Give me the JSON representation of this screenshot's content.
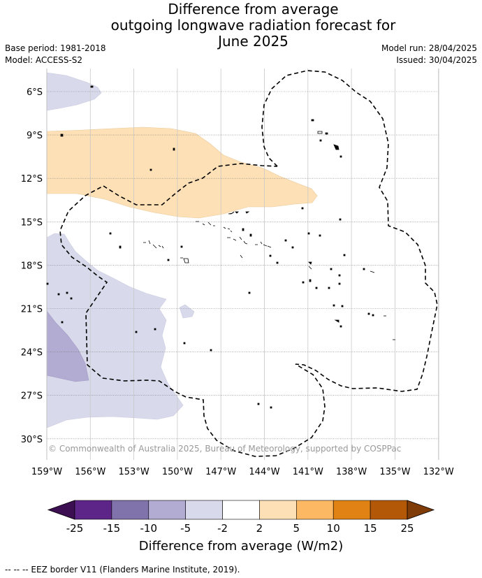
{
  "title": {
    "line1": "Difference from average",
    "line2": "outgoing longwave radiation forecast for",
    "line3": "June 2025"
  },
  "meta": {
    "base_period": "Base period: 1981-2018",
    "model": "Model: ACCESS-S2",
    "model_run": "Model run: 28/04/2025",
    "issued": "Issued: 30/04/2025"
  },
  "axes": {
    "lat_labels": [
      "6°S",
      "9°S",
      "12°S",
      "15°S",
      "18°S",
      "21°S",
      "24°S",
      "27°S",
      "30°S"
    ],
    "lon_labels": [
      "159°W",
      "156°W",
      "153°W",
      "150°W",
      "147°W",
      "144°W",
      "141°W",
      "138°W",
      "135°W",
      "132°W"
    ]
  },
  "copyright": "© Commonwealth of Australia 2025, Bureau of Meteorology, supported by COSPPac",
  "colorbar": {
    "ticks": [
      "-25",
      "-15",
      "-10",
      "-5",
      "-2",
      "2",
      "5",
      "10",
      "15",
      "25"
    ],
    "colors": [
      "#3b0f52",
      "#5c2587",
      "#8073ac",
      "#b2abd2",
      "#d8daeb",
      "#ffffff",
      "#fee0b6",
      "#fdb863",
      "#e08214",
      "#b35806",
      "#7f3b08"
    ],
    "title": "Difference from average (W/m2)"
  },
  "footnote": "--  --  -- EEZ border V11 (Flanders Marine Institute, 2019)."
}
